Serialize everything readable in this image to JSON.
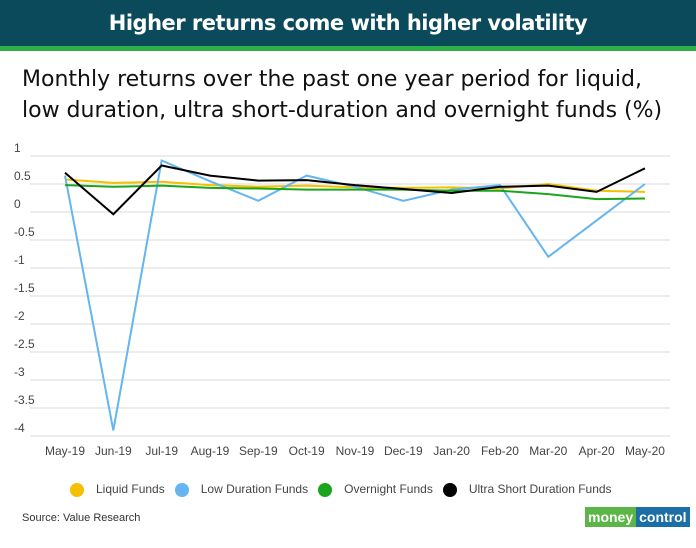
{
  "header": {
    "title": "Higher returns come with higher volatility"
  },
  "chart_data": {
    "type": "line",
    "title": "Monthly returns over the past one year period for liquid, low duration, ultra short-duration and overnight funds (%)",
    "categories": [
      "May-19",
      "Jun-19",
      "Jul-19",
      "Aug-19",
      "Sep-19",
      "Oct-19",
      "Nov-19",
      "Dec-19",
      "Jan-20",
      "Feb-20",
      "Mar-20",
      "Apr-20",
      "May-20"
    ],
    "ylim": [
      -4,
      1
    ],
    "yticks": [
      "1",
      "0.5",
      "0",
      "-0.5",
      "-1",
      "-1.5",
      "-2",
      "-2.5",
      "-3",
      "-3.5",
      "-4"
    ],
    "grid": true,
    "legend_position": "bottom",
    "series": [
      {
        "name": "Liquid Funds",
        "color": "#f5c000",
        "values": [
          0.58,
          0.52,
          0.54,
          0.48,
          0.45,
          0.47,
          0.44,
          0.43,
          0.44,
          0.42,
          0.5,
          0.38,
          0.36
        ]
      },
      {
        "name": "Low Duration Funds",
        "color": "#64b5f0",
        "values": [
          0.65,
          -3.9,
          0.92,
          0.55,
          0.2,
          0.65,
          0.45,
          0.2,
          0.4,
          0.48,
          -0.8,
          -0.15,
          0.5
        ]
      },
      {
        "name": "Overnight Funds",
        "color": "#1aa51a",
        "values": [
          0.48,
          0.45,
          0.47,
          0.43,
          0.42,
          0.4,
          0.4,
          0.4,
          0.38,
          0.38,
          0.32,
          0.23,
          0.24
        ]
      },
      {
        "name": "Ultra Short Duration Funds",
        "color": "#000000",
        "values": [
          0.7,
          -0.04,
          0.83,
          0.65,
          0.56,
          0.57,
          0.48,
          0.41,
          0.34,
          0.45,
          0.47,
          0.36,
          0.78
        ]
      }
    ]
  },
  "footer": {
    "source": "Source: Value Research",
    "logo_part1": "money",
    "logo_part2": "control"
  }
}
